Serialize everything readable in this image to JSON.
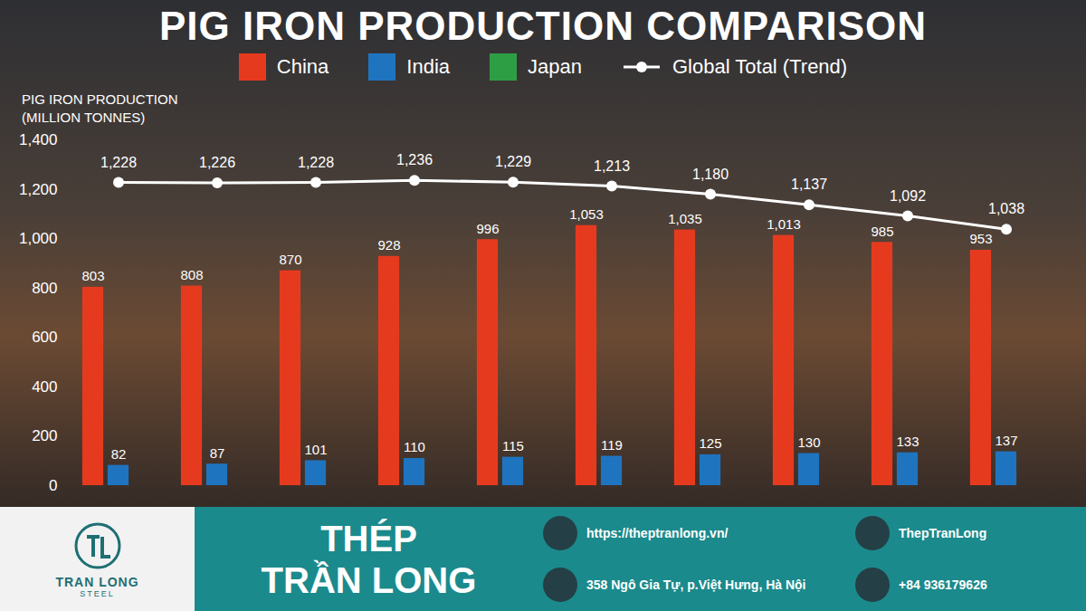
{
  "chart_data": {
    "type": "bar",
    "title": "PIG IRON PRODUCTION COMPARISON",
    "y_label": "PIG IRON PRODUCTION (MILLION TONNES)",
    "categories": [
      null,
      null,
      null,
      null,
      null,
      null,
      null,
      null,
      null,
      null
    ],
    "series": [
      {
        "name": "China",
        "color": "#e63a1f",
        "type": "bar",
        "values": [
          803,
          808,
          870,
          928,
          996,
          1053,
          1035,
          1013,
          985,
          953
        ],
        "value_labels": [
          "803",
          "808",
          "870",
          "928",
          "996",
          "1,053",
          "1,035",
          "1,013",
          "985",
          "953"
        ]
      },
      {
        "name": "India",
        "color": "#1f74c0",
        "type": "bar",
        "values": [
          82,
          87,
          101,
          110,
          115,
          119,
          125,
          130,
          133,
          137
        ]
      },
      {
        "name": "Japan",
        "color": "#2e9e45",
        "type": "bar",
        "values": [
          null,
          null,
          null,
          null,
          null,
          null,
          null,
          null,
          null,
          null
        ]
      },
      {
        "name": "Global Total (Trend)",
        "color": "#ffffff",
        "type": "line",
        "marker": "circle",
        "values": [
          1228,
          1226,
          1228,
          1236,
          1229,
          1213,
          1180,
          1137,
          1092,
          1038
        ],
        "value_labels": [
          "1,228",
          "1,226",
          "1,228",
          "1,236",
          "1,229",
          "1,213",
          "1,180",
          "1,137",
          "1,092",
          "1,038"
        ]
      }
    ],
    "ylim": [
      0,
      1400
    ],
    "yticks": [
      0,
      200,
      400,
      600,
      800,
      {
        "value": 1000,
        "label": "1,000"
      },
      {
        "value": 1200,
        "label": "1,200"
      },
      {
        "value": 1400,
        "label": "1,400"
      }
    ],
    "grid": false,
    "legend": "top",
    "data_labels": true,
    "tick_labels": "y"
  },
  "footer": {
    "logo_text": "TRAN LONG",
    "logo_subtext": "STEEL",
    "brand": [
      "THÉP",
      "TRẦN LONG"
    ],
    "website": "https://theptranlong.vn/",
    "address": "358 Ngô Gia Tự, p.Việt Hưng, Hà Nội",
    "social": "ThepTranLong",
    "phone": "+84 936179626"
  }
}
